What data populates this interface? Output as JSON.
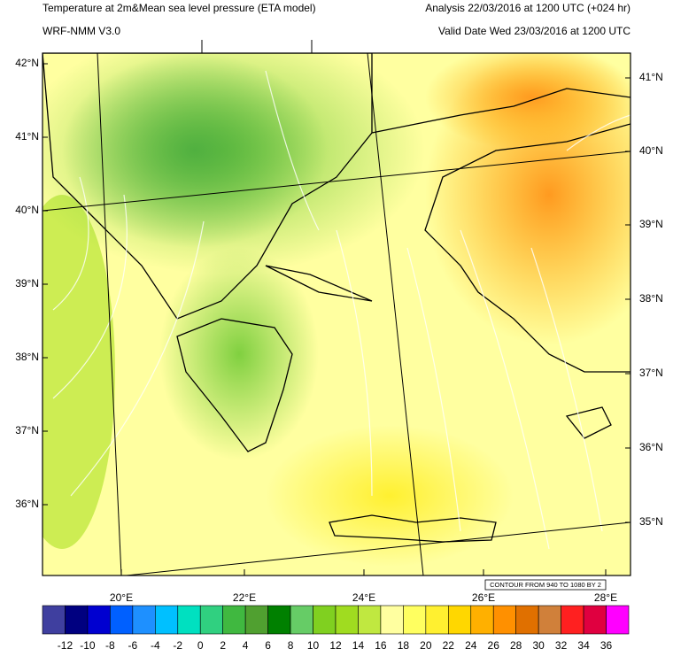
{
  "header": {
    "title": "Temperature at 2m&Mean sea level pressure (ETA model)",
    "analysis": "Analysis 22/03/2016 at 1200 UTC (+024 hr)",
    "model": "WRF-NMM V3.0",
    "valid_date": "Valid Date Wed 23/03/2016 at 1200 UTC"
  },
  "map": {
    "lat_labels_left": [
      "42°N",
      "41°N",
      "40°N",
      "39°N",
      "38°N",
      "37°N",
      "36°N"
    ],
    "lat_labels_right": [
      "41°N",
      "40°N",
      "39°N",
      "38°N",
      "37°N",
      "36°N",
      "35°N"
    ],
    "lon_labels": [
      "20°E",
      "22°E",
      "24°E",
      "26°E",
      "28°E"
    ],
    "contour_info": "CONTOUR FROM 940 TO 1080 BY 2"
  },
  "colorbar": {
    "labels": [
      -12,
      -10,
      -8,
      -6,
      -4,
      -2,
      0,
      2,
      4,
      6,
      8,
      10,
      12,
      14,
      16,
      18,
      20,
      22,
      24,
      26,
      28,
      30,
      32,
      34,
      36
    ],
    "colors": [
      "#3f3f9f",
      "#000080",
      "#0000d0",
      "#0060ff",
      "#1e90ff",
      "#00c0ff",
      "#00e0c0",
      "#30d080",
      "#40b840",
      "#50a030",
      "#008000",
      "#66cc66",
      "#80d020",
      "#a0dc20",
      "#c0e840",
      "#ffffa0",
      "#ffff60",
      "#fff030",
      "#ffd700",
      "#ffb000",
      "#ff9000",
      "#e07000",
      "#d0803a",
      "#ff2020",
      "#e00040",
      "#ff00ff"
    ]
  }
}
